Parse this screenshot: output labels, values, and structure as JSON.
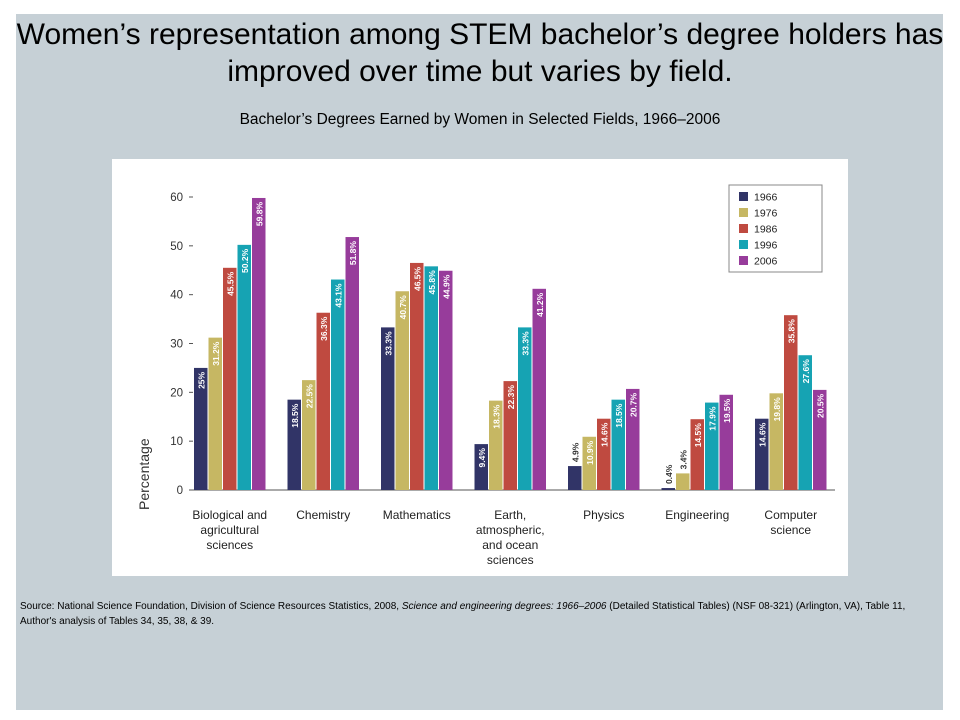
{
  "slide": {
    "title": "Women’s representation among STEM bachelor’s degree holders has improved over time but varies by field."
  },
  "chart_heading": "Bachelor’s Degrees Earned by Women in Selected Fields, 1966–2006",
  "source": {
    "part1": "Source: National Science Foundation, Division of Science Resources Statistics, 2008, ",
    "italic": "Science and engineering degrees: 1966–2006",
    "part2": " (Detailed Statistical Tables) (NSF 08-321) (Arlington, VA), Table 11, Author's analysis of Tables 34, 35, 38, & 39."
  },
  "chart_data": {
    "type": "bar",
    "title": "",
    "ylabel": "Percentage",
    "xlabel": "",
    "ylim": [
      0,
      60
    ],
    "yticks": [
      0,
      10,
      20,
      30,
      40,
      50,
      60
    ],
    "grid": false,
    "legend_position": "top-right",
    "categories": [
      [
        "Biological and",
        "agricultural",
        "sciences"
      ],
      [
        "Chemistry"
      ],
      [
        "Mathematics"
      ],
      [
        "Earth,",
        "atmospheric,",
        "and ocean",
        "sciences"
      ],
      [
        "Physics"
      ],
      [
        "Engineering"
      ],
      [
        "Computer",
        "science"
      ]
    ],
    "series": [
      {
        "name": "1966",
        "color": "#313467",
        "values": [
          25,
          18.5,
          33.3,
          9.4,
          4.9,
          0.4,
          14.6
        ],
        "labels": [
          "25%",
          "18.5%",
          "33.3%",
          "9.4%",
          "4.9%",
          "0.4%",
          "14.6%"
        ]
      },
      {
        "name": "1976",
        "color": "#c6b763",
        "values": [
          31.2,
          22.5,
          40.7,
          18.3,
          10.9,
          3.4,
          19.8
        ],
        "labels": [
          "31.2%",
          "22.5%",
          "40.7%",
          "18.3%",
          "10.9%",
          "3.4%",
          "19.8%"
        ]
      },
      {
        "name": "1986",
        "color": "#bf4a40",
        "values": [
          45.5,
          36.3,
          46.5,
          22.3,
          14.6,
          14.5,
          35.8
        ],
        "labels": [
          "45.5%",
          "36.3%",
          "46.5%",
          "22.3%",
          "14.6%",
          "14.5%",
          "35.8%"
        ]
      },
      {
        "name": "1996",
        "color": "#16a3b3",
        "values": [
          50.2,
          43.1,
          45.8,
          33.3,
          18.5,
          17.9,
          27.6
        ],
        "labels": [
          "50.2%",
          "43.1%",
          "45.8%",
          "33.3%",
          "18.5%",
          "17.9%",
          "27.6%"
        ]
      },
      {
        "name": "2006",
        "color": "#973c9b",
        "values": [
          59.8,
          51.8,
          44.9,
          41.2,
          20.7,
          19.5,
          20.5
        ],
        "labels": [
          "59.8%",
          "51.8%",
          "44.9%",
          "41.2%",
          "20.7%",
          "19.5%",
          "20.5%"
        ]
      }
    ]
  }
}
